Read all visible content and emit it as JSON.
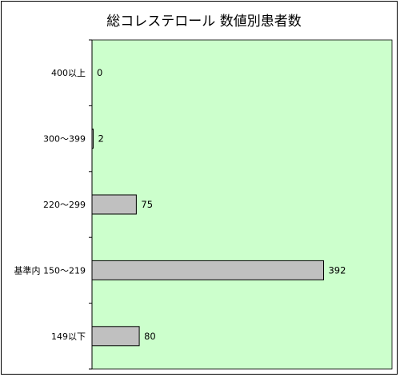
{
  "chart_data": {
    "type": "bar",
    "orientation": "horizontal",
    "title": "総コレステロール 数値別患者数",
    "categories": [
      "400以上",
      "300～399",
      "220～299",
      "基準内 150～219",
      "149以下"
    ],
    "values": [
      0,
      2,
      75,
      392,
      80
    ],
    "xlim": [
      0,
      500
    ],
    "grid": false,
    "legend": "none",
    "colors": {
      "plot_background": "#ccffcc",
      "bar_fill": "#c0c0c0",
      "bar_stroke": "#000000"
    }
  }
}
